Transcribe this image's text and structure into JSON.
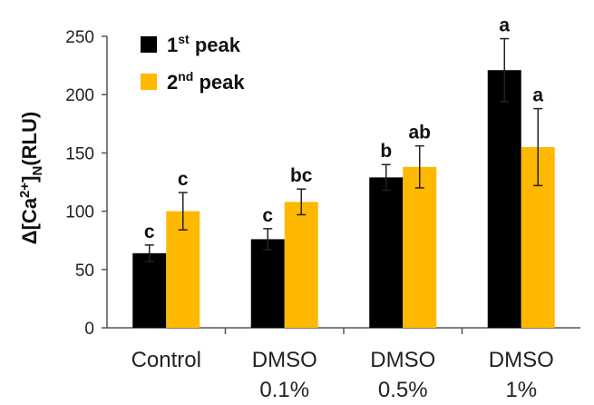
{
  "chart_data": {
    "type": "bar",
    "ylabel": {
      "base": "Δ[Ca",
      "sup": "2+",
      "mid": "]",
      "sub": "N",
      "tail": "(RLU)"
    },
    "ylim": [
      0,
      250
    ],
    "yticks": [
      0,
      50,
      100,
      150,
      200,
      250
    ],
    "categories": [
      {
        "line1": "Control",
        "line2": ""
      },
      {
        "line1": "DMSO",
        "line2": "0.1%"
      },
      {
        "line1": "DMSO",
        "line2": "0.5%"
      },
      {
        "line1": "DMSO",
        "line2": "1%"
      }
    ],
    "series": [
      {
        "name": {
          "base": "1",
          "sup": "st",
          "tail": " peak"
        },
        "color": "#000000",
        "values": [
          64,
          76,
          129,
          221
        ],
        "errors": [
          7,
          9,
          11,
          27
        ],
        "letters": [
          "c",
          "c",
          "b",
          "a"
        ]
      },
      {
        "name": {
          "base": "2",
          "sup": "nd",
          "tail": " peak"
        },
        "color": "#FFB800",
        "values": [
          100,
          108,
          138,
          155
        ],
        "errors": [
          16,
          11,
          18,
          33
        ],
        "letters": [
          "c",
          "bc",
          "ab",
          "a"
        ]
      }
    ],
    "grid": false,
    "legend_position": "top-left"
  }
}
